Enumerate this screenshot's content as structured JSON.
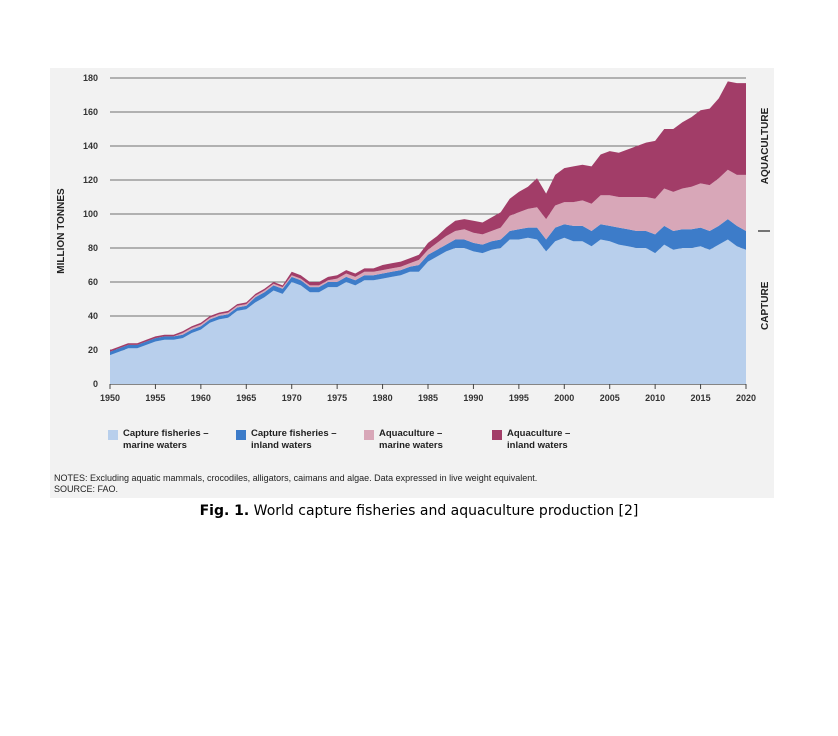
{
  "chart_data": {
    "type": "area",
    "stacked": true,
    "ylabel": "MILLION TONNES",
    "ylim": [
      0,
      180
    ],
    "y_ticks": [
      "0",
      "20",
      "40",
      "60",
      "80",
      "100",
      "120",
      "140",
      "160",
      "180"
    ],
    "x_ticks": [
      "1950",
      "1955",
      "1960",
      "1965",
      "1970",
      "1975",
      "1980",
      "1985",
      "1990",
      "1995",
      "2000",
      "2005",
      "2010",
      "2015",
      "2020"
    ],
    "x": [
      1950,
      1951,
      1952,
      1953,
      1954,
      1955,
      1956,
      1957,
      1958,
      1959,
      1960,
      1961,
      1962,
      1963,
      1964,
      1965,
      1966,
      1967,
      1968,
      1969,
      1970,
      1971,
      1972,
      1973,
      1974,
      1975,
      1976,
      1977,
      1978,
      1979,
      1980,
      1981,
      1982,
      1983,
      1984,
      1985,
      1986,
      1987,
      1988,
      1989,
      1990,
      1991,
      1992,
      1993,
      1994,
      1995,
      1996,
      1997,
      1998,
      1999,
      2000,
      2001,
      2002,
      2003,
      2004,
      2005,
      2006,
      2007,
      2008,
      2009,
      2010,
      2011,
      2012,
      2013,
      2014,
      2015,
      2016,
      2017,
      2018,
      2019,
      2020
    ],
    "series": [
      {
        "name": "Capture fisheries – marine waters",
        "color": "#b8cfec",
        "values": [
          17,
          19,
          21,
          21,
          23,
          25,
          26,
          26,
          27,
          30,
          32,
          36,
          38,
          39,
          43,
          44,
          48,
          51,
          55,
          53,
          60,
          58,
          54,
          54,
          57,
          57,
          60,
          58,
          61,
          61,
          62,
          63,
          64,
          66,
          66,
          72,
          75,
          78,
          80,
          80,
          78,
          77,
          79,
          80,
          85,
          85,
          86,
          85,
          78,
          84,
          86,
          84,
          84,
          81,
          85,
          84,
          82,
          81,
          80,
          80,
          77,
          82,
          79,
          80,
          80,
          81,
          79,
          82,
          85,
          81,
          79
        ]
      },
      {
        "name": "Capture fisheries – inland waters",
        "color": "#3d7cc9",
        "values": [
          2,
          2,
          2,
          2,
          2,
          2,
          2,
          2,
          2,
          2,
          2,
          2,
          2,
          2,
          2,
          2,
          3,
          3,
          3,
          3,
          3,
          3,
          3,
          3,
          3,
          3,
          3,
          3,
          3,
          3,
          3,
          3,
          3,
          3,
          4,
          4,
          4,
          4,
          5,
          5,
          5,
          5,
          5,
          5,
          5,
          6,
          6,
          7,
          7,
          8,
          8,
          9,
          9,
          9,
          9,
          9,
          10,
          10,
          10,
          10,
          11,
          11,
          11,
          11,
          11,
          11,
          11,
          11,
          12,
          12,
          11
        ]
      },
      {
        "name": "Aquaculture – marine waters",
        "color": "#d8a7b8",
        "values": [
          0,
          0,
          0,
          0,
          0,
          0,
          0,
          0,
          1,
          1,
          1,
          1,
          1,
          1,
          1,
          1,
          1,
          1,
          1,
          1,
          1,
          1,
          1,
          1,
          1,
          2,
          2,
          2,
          2,
          2,
          2,
          2,
          2,
          2,
          3,
          3,
          4,
          5,
          5,
          6,
          6,
          6,
          6,
          7,
          9,
          10,
          11,
          12,
          12,
          13,
          13,
          14,
          15,
          16,
          17,
          18,
          18,
          19,
          20,
          20,
          21,
          22,
          23,
          24,
          25,
          26,
          27,
          28,
          29,
          30,
          33
        ]
      },
      {
        "name": "Aquaculture – inland waters",
        "color": "#a23d68",
        "values": [
          1,
          1,
          1,
          1,
          1,
          1,
          1,
          1,
          1,
          1,
          1,
          1,
          1,
          1,
          1,
          1,
          1,
          1,
          1,
          1,
          2,
          2,
          2,
          2,
          2,
          2,
          2,
          2,
          2,
          2,
          3,
          3,
          3,
          3,
          3,
          4,
          4,
          5,
          6,
          6,
          7,
          7,
          8,
          9,
          10,
          12,
          13,
          17,
          15,
          18,
          20,
          21,
          21,
          22,
          24,
          26,
          26,
          28,
          30,
          32,
          34,
          35,
          37,
          39,
          41,
          43,
          45,
          47,
          52,
          54,
          54
        ]
      }
    ],
    "side_labels": {
      "top": "AQUACULTURE",
      "bottom": "CAPTURE"
    }
  },
  "notes": "NOTES: Excluding aquatic mammals, crocodiles, alligators, caimans and algae. Data expressed in live weight equivalent.",
  "source": "SOURCE: FAO.",
  "caption": {
    "prefix": "Fig. 1.",
    "text": " World capture fisheries and aquaculture production [2]"
  },
  "legend": [
    {
      "label": "Capture fisheries –\nmarine waters",
      "color": "#b8cfec"
    },
    {
      "label": "Capture fisheries –\ninland waters",
      "color": "#3d7cc9"
    },
    {
      "label": "Aquaculture –\nmarine waters",
      "color": "#d8a7b8"
    },
    {
      "label": "Aquaculture –\ninland waters",
      "color": "#a23d68"
    }
  ]
}
